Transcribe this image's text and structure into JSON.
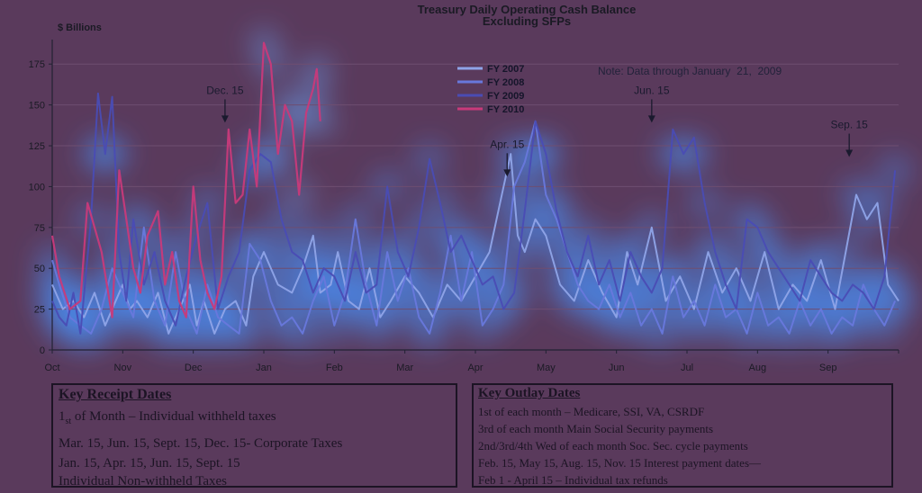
{
  "chart_data": {
    "type": "line",
    "title": "Treasury Daily Operating Cash Balance",
    "subtitle": "Excluding SFPs",
    "ylabel": "$ Billions",
    "ylim": [
      0,
      190
    ],
    "yticks": [
      0,
      25,
      50,
      75,
      100,
      125,
      150,
      175
    ],
    "months": [
      "Oct",
      "Nov",
      "Dec",
      "Jan",
      "Feb",
      "Mar",
      "Apr",
      "May",
      "Jun",
      "Jul",
      "Aug",
      "Sep"
    ],
    "xlim": [
      0,
      12
    ],
    "note": "Note: Data through January  21,  2009",
    "legend_position": "top-center",
    "series": [
      {
        "name": "FY 2007",
        "color": "#8fa4e8",
        "x": [
          0,
          0.15,
          0.3,
          0.45,
          0.6,
          0.75,
          0.9,
          1.0,
          1.1,
          1.2,
          1.35,
          1.5,
          1.65,
          1.8,
          1.95,
          2.05,
          2.15,
          2.3,
          2.45,
          2.6,
          2.75,
          2.85,
          3.0,
          3.2,
          3.4,
          3.55,
          3.7,
          3.8,
          3.95,
          4.05,
          4.2,
          4.35,
          4.5,
          4.65,
          4.8,
          5.0,
          5.2,
          5.4,
          5.6,
          5.8,
          6.0,
          6.2,
          6.35,
          6.5,
          6.6,
          6.7,
          6.85,
          7.0,
          7.2,
          7.4,
          7.6,
          7.8,
          8.0,
          8.15,
          8.3,
          8.5,
          8.7,
          8.9,
          9.1,
          9.3,
          9.5,
          9.7,
          9.9,
          10.1,
          10.3,
          10.5,
          10.7,
          10.9,
          11.1,
          11.25,
          11.4,
          11.55,
          11.7,
          11.85,
          12.0
        ],
        "values": [
          40,
          25,
          30,
          20,
          35,
          15,
          30,
          40,
          25,
          30,
          20,
          35,
          10,
          25,
          40,
          15,
          30,
          10,
          25,
          30,
          15,
          45,
          60,
          40,
          35,
          50,
          70,
          35,
          40,
          60,
          30,
          25,
          50,
          20,
          30,
          45,
          35,
          20,
          40,
          30,
          45,
          60,
          90,
          120,
          70,
          60,
          80,
          70,
          40,
          30,
          55,
          35,
          20,
          60,
          40,
          75,
          30,
          45,
          25,
          60,
          35,
          50,
          30,
          60,
          25,
          40,
          30,
          55,
          25,
          60,
          95,
          80,
          90,
          40,
          30
        ]
      },
      {
        "name": "FY 2008",
        "color": "#6878dc",
        "x": [
          0,
          0.1,
          0.25,
          0.4,
          0.55,
          0.7,
          0.85,
          1.0,
          1.15,
          1.3,
          1.45,
          1.6,
          1.75,
          1.9,
          2.05,
          2.2,
          2.35,
          2.5,
          2.65,
          2.8,
          2.95,
          3.1,
          3.25,
          3.4,
          3.55,
          3.7,
          3.85,
          4.0,
          4.15,
          4.3,
          4.45,
          4.6,
          4.75,
          4.9,
          5.05,
          5.2,
          5.35,
          5.5,
          5.65,
          5.8,
          5.95,
          6.1,
          6.25,
          6.4,
          6.55,
          6.7,
          6.85,
          7.0,
          7.15,
          7.3,
          7.45,
          7.6,
          7.75,
          7.9,
          8.05,
          8.2,
          8.35,
          8.5,
          8.65,
          8.8,
          8.95,
          9.1,
          9.25,
          9.4,
          9.55,
          9.7,
          9.85,
          10.0,
          10.15,
          10.3,
          10.45,
          10.6,
          10.75,
          10.9,
          11.05,
          11.2,
          11.35,
          11.5,
          11.65,
          11.8,
          11.95
        ],
        "values": [
          55,
          40,
          20,
          15,
          10,
          25,
          50,
          35,
          20,
          75,
          30,
          15,
          60,
          25,
          10,
          40,
          20,
          15,
          10,
          65,
          55,
          30,
          15,
          20,
          10,
          30,
          45,
          15,
          35,
          80,
          40,
          15,
          60,
          30,
          50,
          20,
          10,
          35,
          70,
          30,
          60,
          15,
          25,
          40,
          100,
          115,
          140,
          95,
          80,
          60,
          40,
          30,
          25,
          40,
          20,
          35,
          15,
          25,
          10,
          45,
          20,
          30,
          15,
          40,
          20,
          25,
          10,
          35,
          15,
          20,
          10,
          30,
          15,
          25,
          10,
          20,
          15,
          40,
          25,
          15,
          30
        ]
      },
      {
        "name": "FY 2009",
        "color": "#4a4cb4",
        "x": [
          0,
          0.1,
          0.2,
          0.3,
          0.4,
          0.55,
          0.65,
          0.75,
          0.85,
          0.95,
          1.05,
          1.15,
          1.3,
          1.45,
          1.6,
          1.75,
          1.9,
          2.05,
          2.2,
          2.35,
          2.5,
          2.65,
          2.8,
          2.95,
          3.1,
          3.25,
          3.4,
          3.55,
          3.7,
          3.85,
          4.0,
          4.15,
          4.3,
          4.45,
          4.6,
          4.75,
          4.9,
          5.05,
          5.2,
          5.35,
          5.5,
          5.65,
          5.8,
          5.95,
          6.1,
          6.25,
          6.4,
          6.55,
          6.7,
          6.85,
          7.0,
          7.15,
          7.3,
          7.45,
          7.6,
          7.75,
          7.9,
          8.05,
          8.2,
          8.35,
          8.5,
          8.65,
          8.8,
          8.95,
          9.1,
          9.25,
          9.4,
          9.55,
          9.7,
          9.85,
          10.0,
          10.15,
          10.3,
          10.45,
          10.6,
          10.75,
          10.9,
          11.05,
          11.2,
          11.35,
          11.5,
          11.65,
          11.8,
          11.95
        ],
        "values": [
          30,
          20,
          15,
          35,
          10,
          80,
          157,
          120,
          155,
          60,
          30,
          80,
          40,
          60,
          30,
          15,
          45,
          70,
          90,
          25,
          45,
          60,
          110,
          120,
          115,
          80,
          60,
          55,
          35,
          50,
          45,
          30,
          60,
          35,
          40,
          100,
          60,
          45,
          75,
          117,
          90,
          60,
          70,
          55,
          40,
          45,
          25,
          35,
          85,
          140,
          120,
          85,
          60,
          45,
          70,
          40,
          55,
          30,
          60,
          45,
          35,
          50,
          135,
          120,
          130,
          90,
          60,
          40,
          25,
          80,
          75,
          60,
          50,
          40,
          30,
          55,
          45,
          35,
          30,
          40,
          35,
          25,
          45,
          110
        ]
      },
      {
        "name": "FY 2010",
        "color": "#c83a7a",
        "x": [
          0,
          0.1,
          0.25,
          0.4,
          0.5,
          0.6,
          0.7,
          0.85,
          0.95,
          1.05,
          1.15,
          1.25,
          1.35,
          1.5,
          1.6,
          1.7,
          1.8,
          1.9,
          2.0,
          2.1,
          2.2,
          2.3,
          2.4,
          2.5,
          2.6,
          2.7,
          2.8,
          2.9,
          3.0,
          3.1,
          3.2,
          3.3,
          3.4,
          3.5,
          3.6,
          3.7,
          3.75,
          3.8
        ],
        "values": [
          70,
          45,
          25,
          30,
          90,
          75,
          60,
          20,
          110,
          80,
          50,
          35,
          70,
          85,
          40,
          60,
          30,
          20,
          100,
          55,
          35,
          25,
          45,
          135,
          90,
          95,
          135,
          100,
          188,
          175,
          120,
          150,
          140,
          95,
          145,
          160,
          172,
          140
        ]
      }
    ],
    "annotations": [
      {
        "label": "Dec. 15",
        "x": 2.45,
        "y": 138
      },
      {
        "label": "Apr. 15",
        "x": 6.45,
        "y": 105
      },
      {
        "label": "Jun. 15",
        "x": 8.5,
        "y": 138
      },
      {
        "label": "Sep. 15",
        "x": 11.3,
        "y": 117
      }
    ]
  },
  "receipt": {
    "title": "Key Receipt Dates",
    "line1_prefix": "1",
    "line1_sup": "st",
    "line1_rest": " of Month – Individual withheld taxes",
    "line2": "Mar. 15, Jun. 15, Sept. 15, Dec. 15- Corporate Taxes",
    "line3": "Jan. 15, Apr. 15, Jun. 15, Sept. 15",
    "line4": "Individual Non-withheld Taxes"
  },
  "outlay": {
    "title": "Key Outlay Dates",
    "line1": "1st of each month – Medicare, SSI, VA, CSRDF",
    "line2": "3rd of each month Main Social Security payments",
    "line3": "2nd/3rd/4th Wed of each month Soc. Sec. cycle payments",
    "line4": "Feb. 15, May 15, Aug. 15, Nov. 15 Interest payment dates—",
    "line5": "Feb 1 - April 15 – Individual tax refunds"
  }
}
